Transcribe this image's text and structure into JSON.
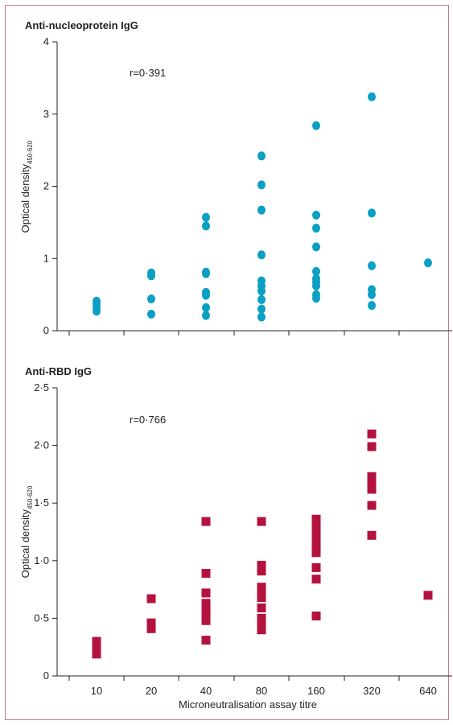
{
  "colors": {
    "frame": "#c9788a",
    "axis": "#231f20",
    "top_marker": "#0aa0c4",
    "bottom_marker": "#b4123e"
  },
  "chart_data": [
    {
      "type": "scatter",
      "title": "Anti-nucleoprotein IgG",
      "ylabel": "Optical density",
      "ylabel_subscript": "450-620",
      "annotation": "r=0·391",
      "ylim": [
        0,
        4
      ],
      "yticks": [
        "0",
        "1",
        "2",
        "3",
        "4"
      ],
      "categories": [
        "10",
        "20",
        "40",
        "80",
        "160",
        "320",
        "640"
      ],
      "marker": "circle",
      "points": [
        {
          "x": "10",
          "y": 0.27
        },
        {
          "x": "10",
          "y": 0.31
        },
        {
          "x": "10",
          "y": 0.37
        },
        {
          "x": "10",
          "y": 0.41
        },
        {
          "x": "20",
          "y": 0.23
        },
        {
          "x": "20",
          "y": 0.44
        },
        {
          "x": "20",
          "y": 0.76
        },
        {
          "x": "20",
          "y": 0.8
        },
        {
          "x": "40",
          "y": 0.21
        },
        {
          "x": "40",
          "y": 0.32
        },
        {
          "x": "40",
          "y": 0.49
        },
        {
          "x": "40",
          "y": 0.53
        },
        {
          "x": "40",
          "y": 0.79
        },
        {
          "x": "40",
          "y": 0.81
        },
        {
          "x": "40",
          "y": 1.45
        },
        {
          "x": "40",
          "y": 1.57
        },
        {
          "x": "80",
          "y": 0.19
        },
        {
          "x": "80",
          "y": 0.3
        },
        {
          "x": "80",
          "y": 0.43
        },
        {
          "x": "80",
          "y": 0.55
        },
        {
          "x": "80",
          "y": 0.62
        },
        {
          "x": "80",
          "y": 0.69
        },
        {
          "x": "80",
          "y": 1.05
        },
        {
          "x": "80",
          "y": 1.67
        },
        {
          "x": "80",
          "y": 2.02
        },
        {
          "x": "80",
          "y": 2.42
        },
        {
          "x": "160",
          "y": 0.45
        },
        {
          "x": "160",
          "y": 0.5
        },
        {
          "x": "160",
          "y": 0.62
        },
        {
          "x": "160",
          "y": 0.67
        },
        {
          "x": "160",
          "y": 0.72
        },
        {
          "x": "160",
          "y": 0.82
        },
        {
          "x": "160",
          "y": 1.16
        },
        {
          "x": "160",
          "y": 1.42
        },
        {
          "x": "160",
          "y": 1.6
        },
        {
          "x": "160",
          "y": 2.84
        },
        {
          "x": "320",
          "y": 0.35
        },
        {
          "x": "320",
          "y": 0.5
        },
        {
          "x": "320",
          "y": 0.57
        },
        {
          "x": "320",
          "y": 0.9
        },
        {
          "x": "320",
          "y": 1.63
        },
        {
          "x": "320",
          "y": 3.24
        },
        {
          "x": "640",
          "y": 0.94
        }
      ]
    },
    {
      "type": "scatter",
      "title": "Anti-RBD IgG",
      "ylabel": "Optical density",
      "ylabel_subscript": "450-620",
      "xlabel": "Microneutralisation assay titre",
      "annotation": "r=0·766",
      "ylim": [
        0,
        2.5
      ],
      "yticks": [
        "0",
        "0·5",
        "1·0",
        "1·5",
        "2·0",
        "2·5"
      ],
      "categories": [
        "10",
        "20",
        "40",
        "80",
        "160",
        "320",
        "640"
      ],
      "marker": "square",
      "points": [
        {
          "x": "10",
          "y": 0.19
        },
        {
          "x": "10",
          "y": 0.24
        },
        {
          "x": "10",
          "y": 0.3
        },
        {
          "x": "20",
          "y": 0.41
        },
        {
          "x": "20",
          "y": 0.46
        },
        {
          "x": "20",
          "y": 0.67
        },
        {
          "x": "40",
          "y": 0.31
        },
        {
          "x": "40",
          "y": 0.48
        },
        {
          "x": "40",
          "y": 0.53
        },
        {
          "x": "40",
          "y": 0.58
        },
        {
          "x": "40",
          "y": 0.63
        },
        {
          "x": "40",
          "y": 0.72
        },
        {
          "x": "40",
          "y": 0.89
        },
        {
          "x": "40",
          "y": 1.34
        },
        {
          "x": "80",
          "y": 0.4
        },
        {
          "x": "80",
          "y": 0.45
        },
        {
          "x": "80",
          "y": 0.5
        },
        {
          "x": "80",
          "y": 0.59
        },
        {
          "x": "80",
          "y": 0.68
        },
        {
          "x": "80",
          "y": 0.73
        },
        {
          "x": "80",
          "y": 0.77
        },
        {
          "x": "80",
          "y": 0.91
        },
        {
          "x": "80",
          "y": 0.96
        },
        {
          "x": "80",
          "y": 1.34
        },
        {
          "x": "160",
          "y": 0.52
        },
        {
          "x": "160",
          "y": 0.84
        },
        {
          "x": "160",
          "y": 0.94
        },
        {
          "x": "160",
          "y": 1.07
        },
        {
          "x": "160",
          "y": 1.12
        },
        {
          "x": "160",
          "y": 1.17
        },
        {
          "x": "160",
          "y": 1.22
        },
        {
          "x": "160",
          "y": 1.27
        },
        {
          "x": "160",
          "y": 1.32
        },
        {
          "x": "160",
          "y": 1.36
        },
        {
          "x": "320",
          "y": 1.22
        },
        {
          "x": "320",
          "y": 1.48
        },
        {
          "x": "320",
          "y": 1.62
        },
        {
          "x": "320",
          "y": 1.67
        },
        {
          "x": "320",
          "y": 1.73
        },
        {
          "x": "320",
          "y": 1.99
        },
        {
          "x": "320",
          "y": 2.1
        },
        {
          "x": "640",
          "y": 0.7
        }
      ]
    }
  ]
}
